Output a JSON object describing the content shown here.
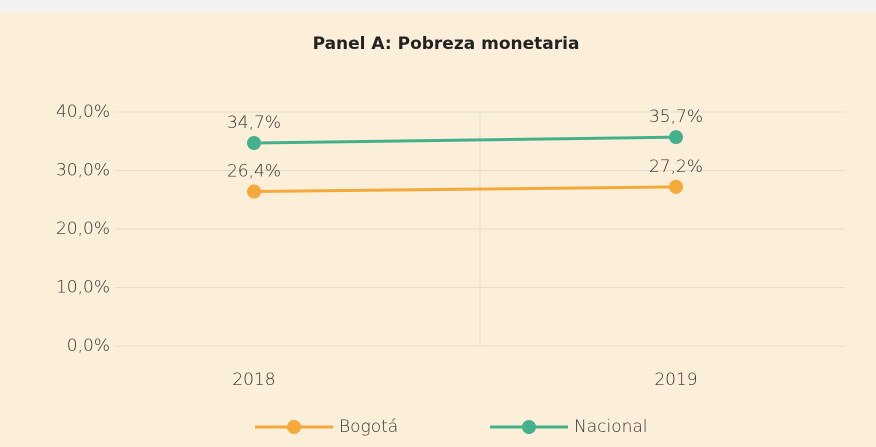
{
  "chart_data": {
    "type": "line",
    "title": "Panel A: Pobreza monetaria",
    "categories": [
      "2018",
      "2019"
    ],
    "series": [
      {
        "name": "Bogotá",
        "color": "#f5a93a",
        "values": [
          26.4,
          27.2
        ],
        "value_labels": [
          "26,4%",
          "27,2%"
        ]
      },
      {
        "name": "Nacional",
        "color": "#45b08c",
        "values": [
          34.7,
          35.7
        ],
        "value_labels": [
          "34,7%",
          "35,7%"
        ]
      }
    ],
    "ylim": [
      0,
      40
    ],
    "yticks": [
      {
        "value": 0,
        "label": "0,0%"
      },
      {
        "value": 10,
        "label": "10,0%"
      },
      {
        "value": 20,
        "label": "20,0%"
      },
      {
        "value": 30,
        "label": "30,0%"
      },
      {
        "value": 40,
        "label": "40,0%"
      }
    ],
    "grid": true,
    "legend": "bottom"
  }
}
